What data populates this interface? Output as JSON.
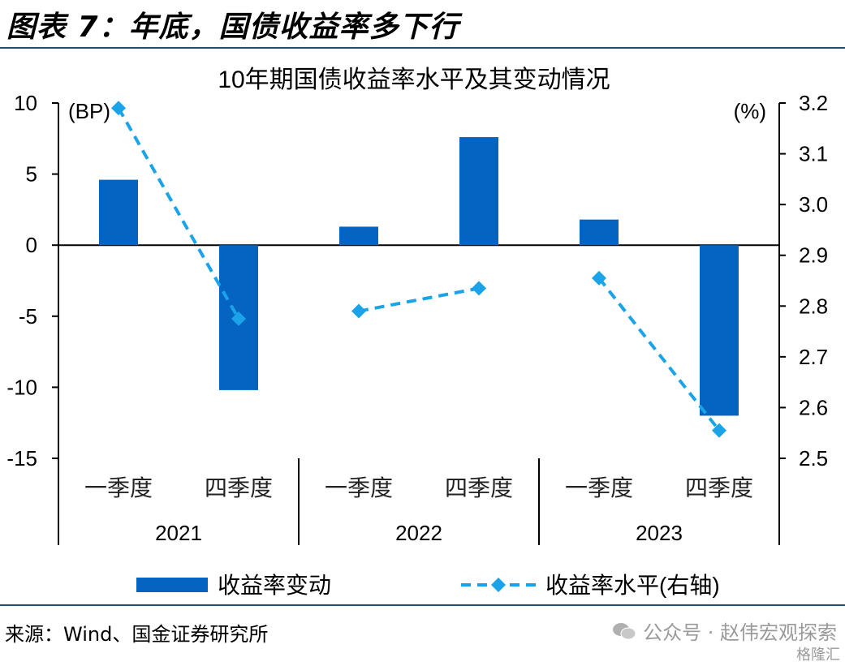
{
  "figure_title": "图表 7：年底，国债收益率多下行",
  "source": "来源：Wind、国金证券研究所",
  "watermark": "公众号 · 赵伟宏观探索",
  "watermark_logo": "格隆汇",
  "colors": {
    "bar": "#0563c1",
    "line": "#1aa3e8",
    "rule": "#1f4e79"
  },
  "chart_data": {
    "type": "bar",
    "title": "10年期国债收益率水平及其变动情况",
    "categories": [
      "一季度",
      "四季度",
      "一季度",
      "四季度",
      "一季度",
      "四季度"
    ],
    "groups": [
      {
        "label": "2021",
        "span": [
          0,
          1
        ]
      },
      {
        "label": "2022",
        "span": [
          2,
          3
        ]
      },
      {
        "label": "2023",
        "span": [
          4,
          5
        ]
      }
    ],
    "left_unit": "(BP)",
    "right_unit": "(%)",
    "ylim_left": [
      -15,
      10
    ],
    "yticks_left": [
      10,
      5,
      0,
      -5,
      -10,
      -15
    ],
    "ylim_right": [
      2.5,
      3.2
    ],
    "yticks_right": [
      "3.2",
      "3.1",
      "3.0",
      "2.9",
      "2.8",
      "2.7",
      "2.6",
      "2.5"
    ],
    "series": [
      {
        "name": "收益率变动",
        "type": "bar",
        "axis": "left",
        "values": [
          4.6,
          -10.2,
          1.3,
          7.6,
          1.8,
          -12.0
        ]
      },
      {
        "name": "收益率水平(右轴)",
        "type": "line",
        "axis": "right",
        "style": "dashed-diamond",
        "segments": [
          [
            0,
            1
          ],
          [
            2,
            3
          ],
          [
            4,
            5
          ]
        ],
        "values": [
          3.19,
          2.775,
          2.79,
          2.835,
          2.855,
          2.555
        ]
      }
    ],
    "legend_position": "bottom",
    "grid": false
  }
}
